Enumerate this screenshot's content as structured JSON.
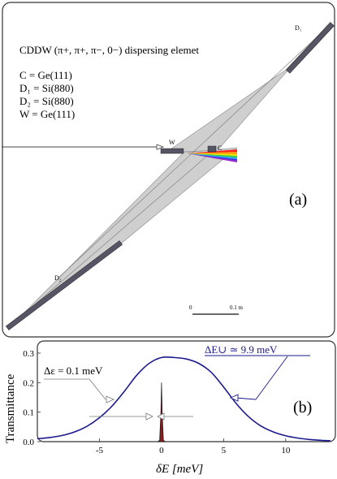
{
  "panel_a": {
    "title": "CDDW (π+, π+, π−, 0−) dispersing elemet",
    "crystals": [
      "C = Ge(111)",
      "D₁ = Si(880)",
      "D₂ = Si(880)",
      "W = Ge(111)"
    ],
    "labels": {
      "d1": "D₁",
      "d2": "D₂",
      "w": "W",
      "c": "C"
    },
    "panel_letter": "(a)",
    "scalebar": {
      "start": "0",
      "end": "0.1 m"
    },
    "colors": {
      "beam_fill": "#cfcfcf",
      "crystal": "#555566"
    }
  },
  "panel_b": {
    "panel_letter": "(b)",
    "ann_narrow": "Δε = 0.1 meV",
    "ann_wide": "ΔE∪ ≃ 9.9 meV",
    "colors": {
      "broad": "#1a1a8c",
      "narrow": "#8b1a1a"
    }
  },
  "chart_data": {
    "type": "line",
    "xlabel": "δE [meV]",
    "ylabel": "Transmittance",
    "xlim": [
      -10,
      14
    ],
    "ylim": [
      0,
      0.33
    ],
    "xticks": [
      -5,
      0,
      5,
      10
    ],
    "yticks": [
      0.0,
      0.1,
      0.2,
      0.3
    ],
    "series": [
      {
        "x": [
          -10,
          -9,
          -8,
          -7,
          -6,
          -5,
          -4,
          -3,
          -2,
          -1,
          0,
          1,
          2,
          3,
          4,
          5,
          6,
          7,
          8,
          9,
          10,
          11,
          12,
          13,
          13.6
        ],
        "y": [
          0.01,
          0.014,
          0.021,
          0.033,
          0.052,
          0.081,
          0.12,
          0.17,
          0.225,
          0.265,
          0.285,
          0.285,
          0.28,
          0.265,
          0.235,
          0.185,
          0.13,
          0.085,
          0.053,
          0.033,
          0.02,
          0.012,
          0.007,
          0.004,
          0.003
        ]
      },
      {
        "x": [
          -0.3,
          -0.15,
          -0.05,
          0,
          0.05,
          0.15,
          0.3
        ],
        "y": [
          0,
          0.005,
          0.1,
          0.2,
          0.1,
          0.005,
          0
        ]
      }
    ]
  }
}
